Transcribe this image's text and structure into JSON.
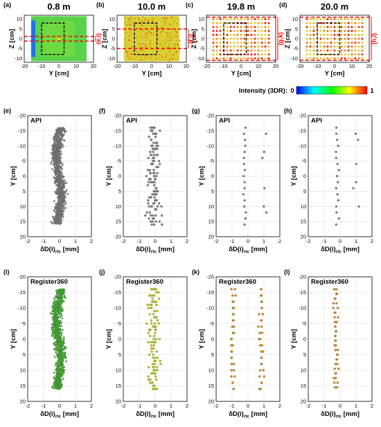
{
  "top_row": {
    "panels": [
      {
        "id": "a",
        "label": "(a)",
        "title": "0.8 m",
        "style": "solid",
        "regions": [
          "(e,i)"
        ]
      },
      {
        "id": "b",
        "label": "(b)",
        "title": "10.0 m",
        "style": "dense",
        "regions": [
          "(f,j)"
        ]
      },
      {
        "id": "c",
        "label": "(c)",
        "title": "19.8 m",
        "style": "grid",
        "regions": [
          "(g,k)"
        ]
      },
      {
        "id": "d",
        "label": "(d)",
        "title": "20.0 m",
        "style": "grid",
        "regions": [
          "(h,l)"
        ]
      }
    ],
    "xlabel": "Y [cm]",
    "ylabel": "Z [cm]",
    "xticks": [
      "-20",
      "-10",
      "0",
      "10",
      "20"
    ],
    "yticks": [
      "10",
      "5",
      "0",
      "-5",
      "-10"
    ],
    "colorbar": {
      "label": "Intensity (3DR):",
      "min": "0",
      "max": "1",
      "colors": [
        "#0000ff",
        "#00ffff",
        "#00ff00",
        "#ffff00",
        "#ff0000"
      ]
    }
  },
  "api_row": {
    "panels": [
      {
        "id": "e",
        "label": "(e)",
        "inset": "API",
        "color": "#808080",
        "style": "band"
      },
      {
        "id": "f",
        "label": "(f)",
        "inset": "API",
        "color": "#808080",
        "style": "sparse"
      },
      {
        "id": "g",
        "label": "(g)",
        "inset": "API",
        "color": "#808080",
        "style": "very-sparse"
      },
      {
        "id": "h",
        "label": "(h)",
        "inset": "API",
        "color": "#808080",
        "style": "very-sparse"
      }
    ]
  },
  "reg_row": {
    "panels": [
      {
        "id": "i",
        "label": "(i)",
        "inset": "Register360",
        "color": "#4caf3a",
        "style": "band"
      },
      {
        "id": "j",
        "label": "(j)",
        "inset": "Register360",
        "color": "#b5c22b",
        "style": "sparse"
      },
      {
        "id": "k",
        "label": "(k)",
        "inset": "Register360",
        "color": "#c98a2a",
        "style": "two-cols"
      },
      {
        "id": "l",
        "label": "(l)",
        "inset": "Register360",
        "color": "#c98a2a",
        "style": "column"
      }
    ]
  },
  "scatter_axes": {
    "xlabel_main": "δD(i)",
    "xlabel_sub": "rtc",
    "xlabel_unit": " [mm]",
    "ylabel": "Y [cm]",
    "xticks": [
      "-2",
      "-1",
      "0",
      "1",
      "2"
    ],
    "yticks": [
      "-20",
      "-15",
      "-10",
      "-5",
      "0",
      "5",
      "10",
      "15",
      "20"
    ]
  },
  "chart_data": [
    {
      "type": "scatter",
      "panel": "a",
      "title": "0.8 m",
      "xlabel": "Y [cm]",
      "ylabel": "Z [cm]",
      "xlim": [
        -20,
        20
      ],
      "ylim": [
        -12,
        12
      ]
    },
    {
      "type": "scatter",
      "panel": "b",
      "title": "10.0 m",
      "xlabel": "Y [cm]",
      "ylabel": "Z [cm]",
      "xlim": [
        -20,
        20
      ],
      "ylim": [
        -12,
        12
      ]
    },
    {
      "type": "scatter",
      "panel": "c",
      "title": "19.8 m",
      "xlabel": "Y [cm]",
      "ylabel": "Z [cm]",
      "xlim": [
        -20,
        20
      ],
      "ylim": [
        -12,
        12
      ]
    },
    {
      "type": "scatter",
      "panel": "d",
      "title": "20.0 m",
      "xlabel": "Y [cm]",
      "ylabel": "Z [cm]",
      "xlim": [
        -20,
        20
      ],
      "ylim": [
        -12,
        12
      ]
    },
    {
      "type": "scatter",
      "panel": "e",
      "annotation": "API",
      "xlabel": "δD(i)rtc [mm]",
      "ylabel": "Y [cm]",
      "xlim": [
        -2,
        2
      ],
      "ylim": [
        -20,
        20
      ]
    },
    {
      "type": "scatter",
      "panel": "f",
      "annotation": "API",
      "xlabel": "δD(i)rtc [mm]",
      "ylabel": "Y [cm]",
      "xlim": [
        -2,
        2
      ],
      "ylim": [
        -20,
        20
      ]
    },
    {
      "type": "scatter",
      "panel": "g",
      "annotation": "API",
      "xlabel": "δD(i)rtc [mm]",
      "ylabel": "Y [cm]",
      "xlim": [
        -2,
        2
      ],
      "ylim": [
        -20,
        20
      ]
    },
    {
      "type": "scatter",
      "panel": "h",
      "annotation": "API",
      "xlabel": "δD(i)rtc [mm]",
      "ylabel": "Y [cm]",
      "xlim": [
        -2,
        2
      ],
      "ylim": [
        -20,
        20
      ]
    },
    {
      "type": "scatter",
      "panel": "i",
      "annotation": "Register360",
      "xlabel": "δD(i)rtc [mm]",
      "ylabel": "Y [cm]",
      "xlim": [
        -2,
        2
      ],
      "ylim": [
        -20,
        20
      ]
    },
    {
      "type": "scatter",
      "panel": "j",
      "annotation": "Register360",
      "xlabel": "δD(i)rtc [mm]",
      "ylabel": "Y [cm]",
      "xlim": [
        -2,
        2
      ],
      "ylim": [
        -20,
        20
      ]
    },
    {
      "type": "scatter",
      "panel": "k",
      "annotation": "Register360",
      "xlabel": "δD(i)rtc [mm]",
      "ylabel": "Y [cm]",
      "xlim": [
        -2,
        2
      ],
      "ylim": [
        -20,
        20
      ]
    },
    {
      "type": "scatter",
      "panel": "l",
      "annotation": "Register360",
      "xlabel": "δD(i)rtc [mm]",
      "ylabel": "Y [cm]",
      "xlim": [
        -2,
        2
      ],
      "ylim": [
        -20,
        20
      ]
    }
  ]
}
